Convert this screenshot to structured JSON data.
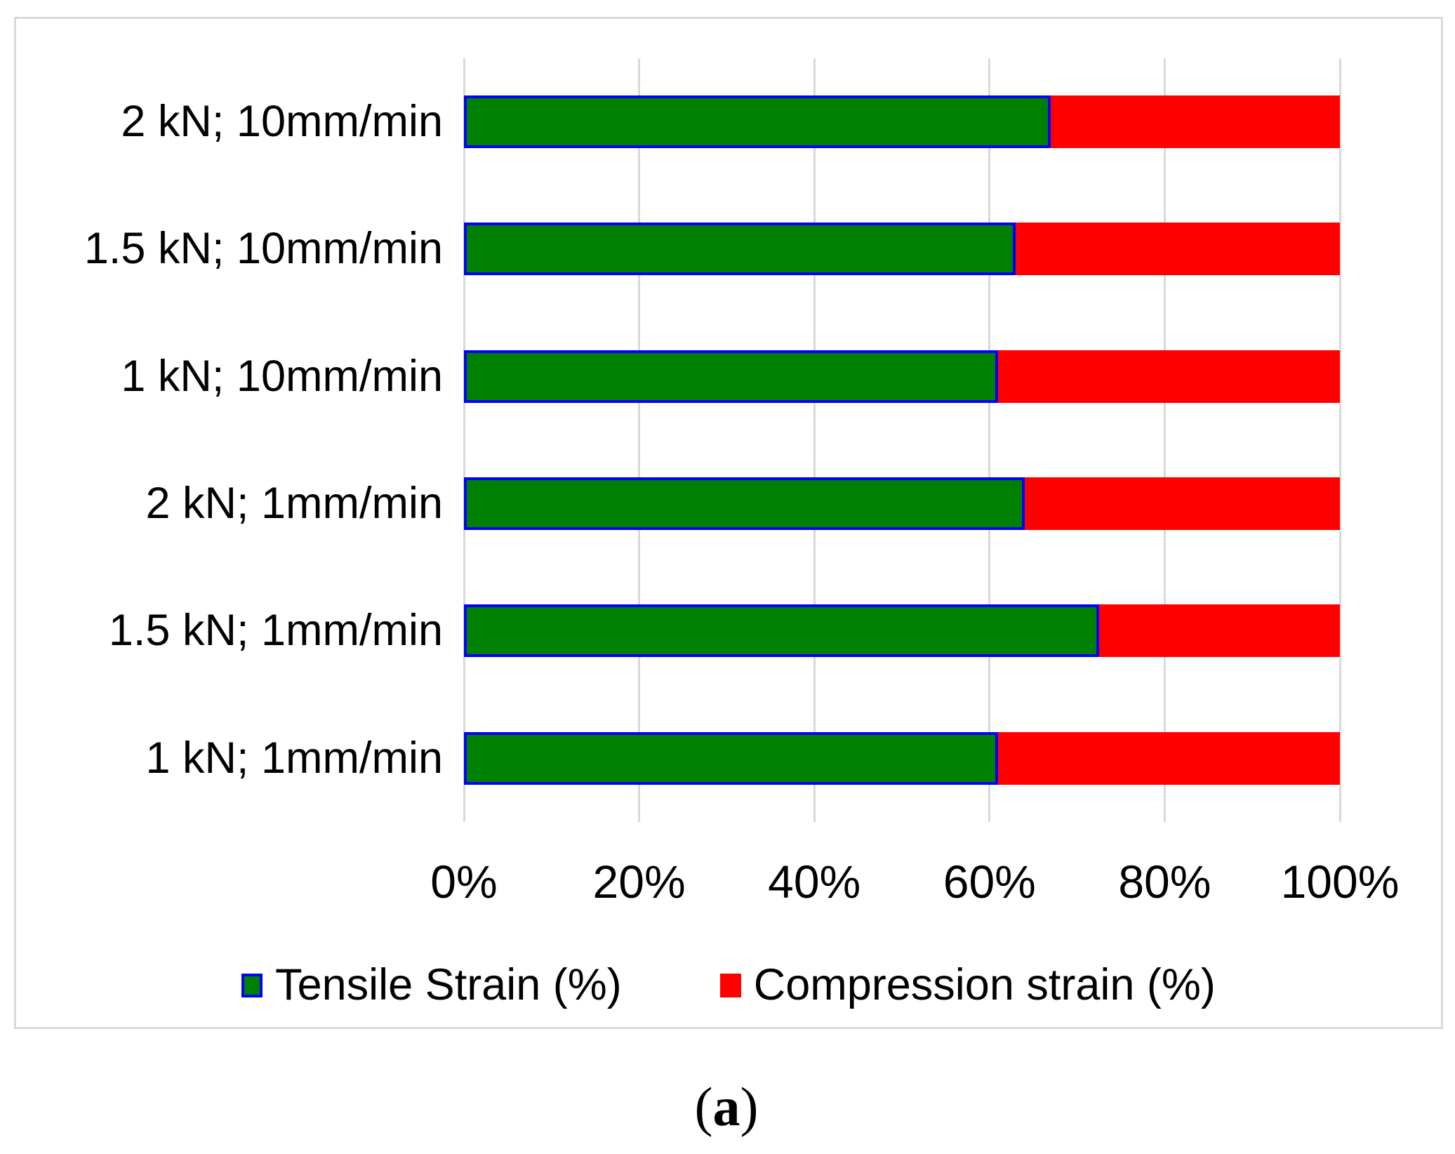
{
  "figure": {
    "caption": {
      "open": "(",
      "letter": "a",
      "close": ")"
    }
  },
  "chart_data": {
    "type": "bar",
    "orientation": "horizontal",
    "stacked": true,
    "title": "",
    "xlabel": "",
    "ylabel": "",
    "categories": [
      "2 kN; 10mm/min",
      "1.5 kN; 10mm/min",
      "1 kN; 10mm/min",
      "2 kN; 1mm/min",
      "1.5 kN; 1mm/min",
      "1 kN; 1mm/min"
    ],
    "series": [
      {
        "name": "Tensile Strain (%)",
        "color": "#008000",
        "border_color": "#0000FF",
        "values": [
          67,
          63,
          61,
          64,
          72.5,
          61
        ]
      },
      {
        "name": "Compression strain (%)",
        "color": "#FF0000",
        "values": [
          33,
          37,
          39,
          36,
          27.5,
          39
        ]
      }
    ],
    "x_axis": {
      "min": 0,
      "max": 100,
      "tick_step": 20,
      "ticks": [
        "0%",
        "20%",
        "40%",
        "60%",
        "80%",
        "100%"
      ],
      "grid": true
    },
    "legend": {
      "position": "bottom",
      "entries": [
        "Tensile Strain (%)",
        "Compression strain (%)"
      ]
    },
    "colors": {
      "gridline": "#D9D9D9",
      "frame_border": "#D9D9D9",
      "background": "#FFFFFF",
      "text": "#000000"
    }
  }
}
